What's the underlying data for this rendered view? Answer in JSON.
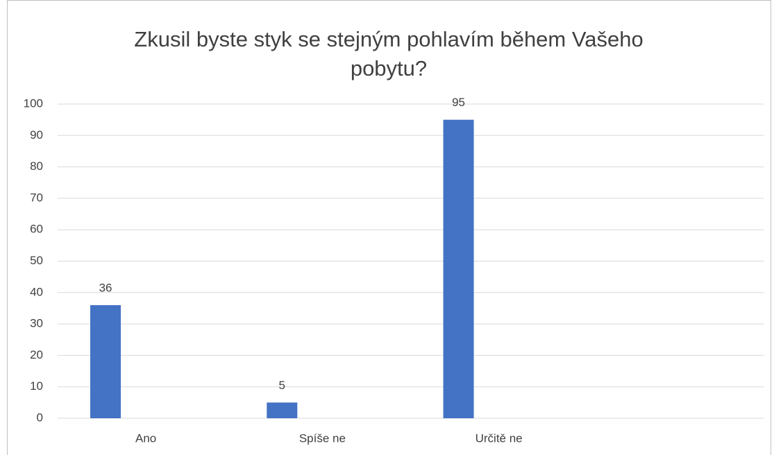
{
  "chart_data": {
    "type": "bar",
    "title": "Zkusil byste styk se stejným pohlavím během Vašeho pobytu?",
    "categories": [
      "Ano",
      "Spíše ne",
      "Určitě ne",
      null
    ],
    "values": [
      36,
      5,
      95,
      null
    ],
    "color": "#4472c4",
    "ylim": [
      0,
      100
    ],
    "yticks": [
      0,
      10,
      20,
      30,
      40,
      50,
      60,
      70,
      80,
      90,
      100
    ],
    "grid": true
  }
}
